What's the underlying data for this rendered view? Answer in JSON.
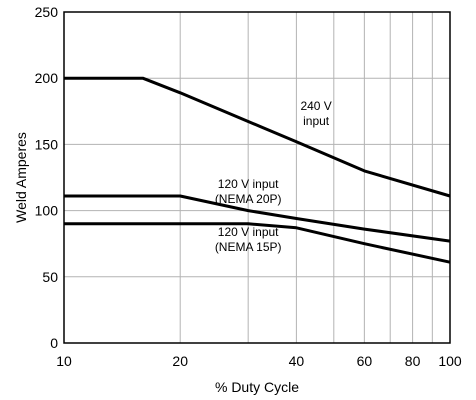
{
  "chart_data": {
    "type": "line",
    "title": "",
    "xlabel": "% Duty Cycle",
    "ylabel": "Weld Amperes",
    "x_scale": "log",
    "xlim": [
      10,
      100
    ],
    "ylim": [
      0,
      250
    ],
    "x_ticks": [
      10,
      20,
      40,
      60,
      80,
      100
    ],
    "x_gridlines": [
      10,
      20,
      30,
      40,
      50,
      60,
      70,
      80,
      90,
      100
    ],
    "y_ticks": [
      0,
      50,
      100,
      150,
      200,
      250
    ],
    "y_gridlines": [
      0,
      50,
      100,
      150,
      200,
      250
    ],
    "grid": true,
    "legend": "none",
    "series": [
      {
        "points": [
          [
            10,
            200
          ],
          [
            16,
            200
          ],
          [
            20,
            189
          ],
          [
            40,
            152
          ],
          [
            60,
            130
          ],
          [
            100,
            111
          ]
        ]
      },
      {
        "points": [
          [
            10,
            111
          ],
          [
            20,
            111
          ],
          [
            30,
            100
          ],
          [
            40,
            94
          ],
          [
            60,
            86
          ],
          [
            100,
            77
          ]
        ]
      },
      {
        "points": [
          [
            10,
            90
          ],
          [
            20,
            90
          ],
          [
            30,
            90
          ],
          [
            40,
            87
          ],
          [
            60,
            75
          ],
          [
            100,
            61
          ]
        ]
      }
    ],
    "annotations": [
      {
        "lines": [
          "240 V",
          "input"
        ],
        "x": 45,
        "y": 176
      },
      {
        "lines": [
          "120 V input",
          "(NEMA 20P)"
        ],
        "x": 30,
        "y": 117
      },
      {
        "lines": [
          "120 V input",
          "(NEMA 15P)"
        ],
        "x": 30,
        "y": 81
      }
    ]
  }
}
